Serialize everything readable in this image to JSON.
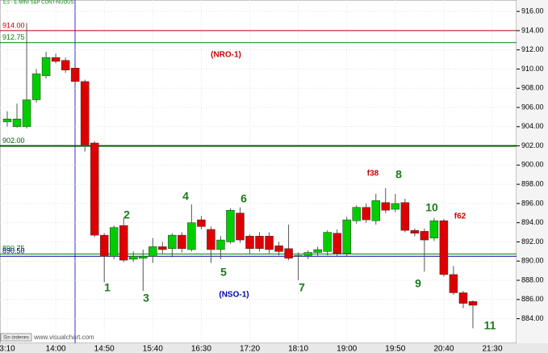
{
  "chart_data": {
    "type": "candlestick",
    "header": "ES - E-MINI S&P CONTINUOUS",
    "footer": "www.visualchart.com",
    "status": "Sin órdenes",
    "categories": [
      "3:10",
      null,
      null,
      null,
      null,
      "14:00",
      null,
      null,
      null,
      null,
      "14:50",
      null,
      null,
      null,
      null,
      "15:40",
      null,
      null,
      null,
      null,
      "16:30",
      null,
      null,
      null,
      null,
      "17:20",
      null,
      null,
      null,
      null,
      "18:10",
      null,
      null,
      null,
      null,
      "19:00",
      null,
      null,
      null,
      null,
      "19:50",
      null,
      null,
      null,
      null,
      "20:40",
      null,
      null,
      null,
      null,
      "21:30"
    ],
    "open": [
      904.5,
      904.0,
      904.0,
      906.8,
      909.3,
      911.2,
      910.9,
      910.1,
      908.7,
      902.3,
      892.7,
      890.5,
      893.7,
      890.2,
      890.3,
      890.5,
      891.5,
      891.3,
      892.7,
      891.2,
      894.3,
      893.3,
      891.2,
      892.0,
      895.0,
      892.6,
      892.6,
      892.6,
      891.6,
      891.3,
      890.6,
      890.6,
      890.9,
      891.0,
      892.9,
      890.8,
      894.2,
      895.6,
      894.2,
      896.1,
      895.4,
      896.1,
      893.2,
      893.1,
      892.4,
      894.2,
      888.6,
      886.7,
      885.8,
      null,
      null
    ],
    "high": [
      905.6,
      906.4,
      914.8,
      910.0,
      911.8,
      911.6,
      911.2,
      910.4,
      908.9,
      902.5,
      892.9,
      893.7,
      894.5,
      891.0,
      891.2,
      892.4,
      892.0,
      892.9,
      893.0,
      895.9,
      894.7,
      893.6,
      892.6,
      895.5,
      895.6,
      892.8,
      893.0,
      893.0,
      892.0,
      893.8,
      890.9,
      891.1,
      891.5,
      893.2,
      893.3,
      894.6,
      895.8,
      896.0,
      897.0,
      897.6,
      897.0,
      896.5,
      893.4,
      893.4,
      894.5,
      894.4,
      889.5,
      886.9,
      885.9,
      null,
      null
    ],
    "low": [
      904.0,
      903.9,
      903.8,
      906.5,
      909.0,
      910.6,
      909.6,
      908.4,
      901.4,
      892.5,
      887.8,
      890.2,
      889.9,
      889.9,
      886.9,
      889.8,
      890.8,
      890.4,
      890.9,
      891.0,
      893.3,
      889.8,
      890.2,
      891.8,
      891.9,
      890.8,
      891.0,
      890.8,
      890.6,
      890.1,
      888.0,
      890.2,
      890.5,
      890.6,
      890.5,
      890.5,
      893.9,
      894.0,
      893.8,
      895.0,
      895.1,
      893.0,
      892.6,
      888.9,
      892.1,
      888.4,
      886.5,
      885.1,
      883.0,
      null,
      null
    ],
    "close": [
      904.8,
      904.8,
      906.8,
      909.5,
      911.2,
      910.8,
      909.9,
      908.7,
      902.1,
      892.7,
      890.5,
      893.5,
      890.1,
      890.5,
      890.5,
      891.5,
      891.2,
      892.7,
      891.3,
      894.0,
      893.6,
      891.2,
      892.2,
      895.3,
      892.2,
      891.3,
      891.3,
      891.2,
      891.0,
      890.3,
      890.6,
      890.9,
      891.2,
      893.0,
      890.8,
      894.3,
      895.6,
      894.3,
      896.3,
      895.3,
      896.0,
      893.2,
      892.9,
      892.2,
      894.2,
      888.6,
      886.7,
      885.6,
      885.4,
      null,
      null
    ],
    "up_color": "#00cc00",
    "down_color": "#dd0000",
    "ylim": [
      881.44,
      917.19
    ],
    "yticks": [
      {
        "value": 884,
        "label": "884.00"
      },
      {
        "value": 886,
        "label": "886.00"
      },
      {
        "value": 888,
        "label": "888.00"
      },
      {
        "value": 890,
        "label": "890.00"
      },
      {
        "value": 892,
        "label": "892.00"
      },
      {
        "value": 894,
        "label": "894.00"
      },
      {
        "value": 896,
        "label": "896.00"
      },
      {
        "value": 898,
        "label": "898.00"
      },
      {
        "value": 900,
        "label": "900.00"
      },
      {
        "value": 902,
        "label": "902.00"
      },
      {
        "value": 904,
        "label": "904.00"
      },
      {
        "value": 906,
        "label": "906.00"
      },
      {
        "value": 908,
        "label": "908.00"
      },
      {
        "value": 910,
        "label": "910.00"
      },
      {
        "value": 912,
        "label": "912.00"
      },
      {
        "value": 914,
        "label": "914.00"
      },
      {
        "value": 916,
        "label": "916.00"
      }
    ],
    "levels": [
      {
        "value": 914,
        "label": "914.00",
        "color": "#c00000"
      },
      {
        "value": 912.75,
        "label": "912.75",
        "color": "#008000"
      },
      {
        "value": 902,
        "label": "902.00",
        "color": "#006000"
      },
      {
        "value": 890.75,
        "label": "890.75",
        "color": "#008000"
      },
      {
        "value": 890.5,
        "label": "890.50",
        "color": "#0000a0"
      }
    ],
    "annotations": [
      {
        "text": "(NRO-1)",
        "color": "#cc0000"
      },
      {
        "text": "1",
        "color": "#1a7a1a"
      },
      {
        "text": "2",
        "color": "#1a7a1a"
      },
      {
        "text": "3",
        "color": "#1a7a1a"
      },
      {
        "text": "4",
        "color": "#1a7a1a"
      },
      {
        "text": "5",
        "color": "#1a7a1a"
      },
      {
        "text": "6",
        "color": "#1a7a1a"
      },
      {
        "text": "7",
        "color": "#1a7a1a"
      },
      {
        "text": "8",
        "color": "#1a7a1a"
      },
      {
        "text": "9",
        "color": "#1a7a1a"
      },
      {
        "text": "10",
        "color": "#1a7a1a"
      },
      {
        "text": "11",
        "color": "#1a7a1a"
      },
      {
        "text": "f38",
        "color": "#cc0000"
      },
      {
        "text": "f62",
        "color": "#cc0000"
      },
      {
        "text": "(NSO-1)",
        "color": "#0000aa"
      }
    ]
  }
}
